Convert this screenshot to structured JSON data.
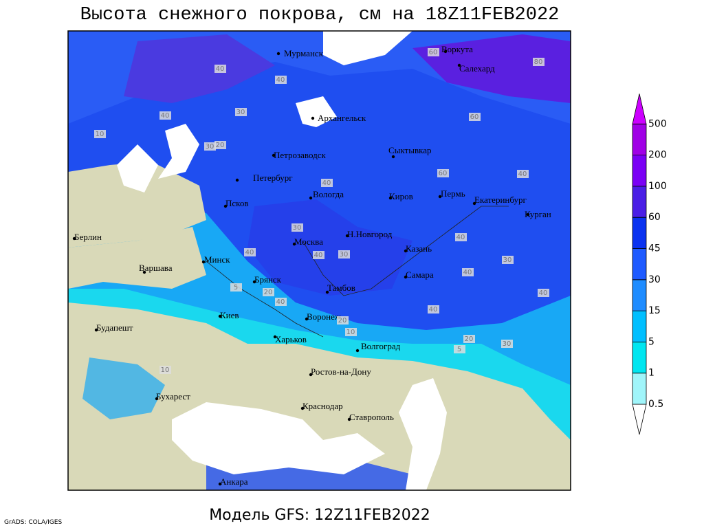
{
  "header": {
    "title": "Высота снежного покрова, см на 18Z11FEB2022"
  },
  "footer": {
    "subtitle": "Модель GFS: 12Z11FEB2022",
    "credit": "GrADS: COLA/IGES"
  },
  "colorbar": {
    "levels": [
      0.5,
      1,
      5,
      15,
      30,
      45,
      60,
      100,
      200,
      500
    ],
    "colors": [
      "#ffffff",
      "#a0f5fa",
      "#00e6f0",
      "#00bfff",
      "#1e8cff",
      "#1e5aff",
      "#0a32f0",
      "#4a1ee6",
      "#7a00f5",
      "#a000e6",
      "#cc00ff"
    ]
  },
  "map": {
    "cities": [
      "Мурманск",
      "Воркута",
      "Салехард",
      "Архангельск",
      "Петрозаводск",
      "Сыктывкар",
      "Петербург",
      "Вологда",
      "Киров",
      "Пермь",
      "Екатеринбург",
      "Курган",
      "Псков",
      "Берлин",
      "Н.Новгород",
      "Москва",
      "Казань",
      "Минск",
      "Варшава",
      "Самара",
      "Брянск",
      "Тамбов",
      "Киев",
      "Воронеж",
      "Будапешт",
      "Харьков",
      "Волгоград",
      "Ростов-на-Дону",
      "Бухарест",
      "Краснодар",
      "Ставрополь",
      "Анкара"
    ],
    "contour_labels": [
      40,
      60,
      80,
      40,
      30,
      20,
      10,
      40,
      60,
      60,
      40,
      40,
      40,
      30,
      40,
      40,
      40,
      30,
      20,
      40,
      30,
      40,
      20,
      10,
      30,
      30,
      5,
      10,
      5,
      20,
      40
    ]
  }
}
